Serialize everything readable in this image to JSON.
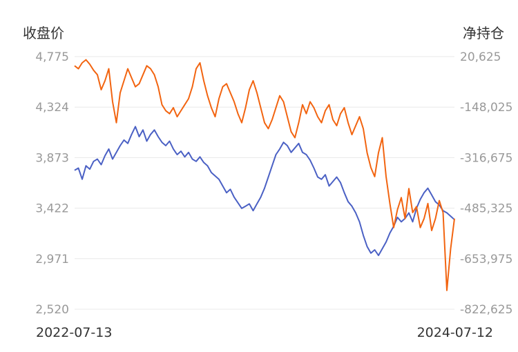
{
  "chart_data": {
    "type": "line",
    "left_axis_title": "收盘价",
    "right_axis_title": "净持仓",
    "left_ticks": [
      "4,775",
      "4,324",
      "3,873",
      "3,422",
      "2,971",
      "2,520"
    ],
    "right_ticks": [
      "20,625",
      "-148,025",
      "-316,675",
      "-485,325",
      "-653,975",
      "-822,625"
    ],
    "ylim_left": [
      2520,
      4775
    ],
    "ylim_right": [
      -822625,
      20625
    ],
    "grid": true,
    "x_start_label": "2022-07-13",
    "x_end_label": "2024-07-12",
    "series": [
      {
        "axis": "left",
        "color": "#4a60c4",
        "values": [
          3760,
          3780,
          3680,
          3800,
          3770,
          3840,
          3860,
          3810,
          3890,
          3950,
          3860,
          3920,
          3980,
          4030,
          4000,
          4080,
          4150,
          4060,
          4120,
          4020,
          4080,
          4120,
          4060,
          4010,
          3980,
          4020,
          3950,
          3900,
          3930,
          3880,
          3920,
          3860,
          3840,
          3880,
          3830,
          3800,
          3740,
          3710,
          3680,
          3620,
          3560,
          3590,
          3520,
          3470,
          3420,
          3440,
          3460,
          3400,
          3460,
          3520,
          3600,
          3700,
          3800,
          3900,
          3950,
          4010,
          3980,
          3920,
          3960,
          4000,
          3920,
          3900,
          3850,
          3780,
          3700,
          3680,
          3720,
          3620,
          3660,
          3700,
          3650,
          3560,
          3480,
          3440,
          3380,
          3300,
          3180,
          3080,
          3020,
          3050,
          3000,
          3060,
          3120,
          3200,
          3260,
          3340,
          3300,
          3330,
          3380,
          3300,
          3420,
          3500,
          3560,
          3600,
          3540,
          3480,
          3450,
          3400,
          3380,
          3350,
          3320
        ]
      },
      {
        "axis": "right",
        "color": "#f26410",
        "values": [
          -10000,
          -20000,
          0,
          10000,
          -5000,
          -25000,
          -40000,
          -90000,
          -60000,
          -20000,
          -130000,
          -200000,
          -100000,
          -60000,
          -20000,
          -50000,
          -80000,
          -70000,
          -40000,
          -10000,
          -20000,
          -40000,
          -80000,
          -140000,
          -160000,
          -170000,
          -150000,
          -180000,
          -160000,
          -140000,
          -120000,
          -80000,
          -20000,
          0,
          -60000,
          -110000,
          -150000,
          -180000,
          -120000,
          -80000,
          -70000,
          -100000,
          -130000,
          -170000,
          -200000,
          -150000,
          -90000,
          -60000,
          -100000,
          -150000,
          -200000,
          -220000,
          -190000,
          -150000,
          -110000,
          -130000,
          -180000,
          -230000,
          -250000,
          -200000,
          -140000,
          -170000,
          -130000,
          -150000,
          -180000,
          -200000,
          -160000,
          -140000,
          -190000,
          -210000,
          -170000,
          -150000,
          -200000,
          -240000,
          -210000,
          -180000,
          -220000,
          -300000,
          -350000,
          -380000,
          -300000,
          -250000,
          -380000,
          -470000,
          -550000,
          -490000,
          -450000,
          -520000,
          -420000,
          -500000,
          -480000,
          -550000,
          -520000,
          -470000,
          -560000,
          -520000,
          -460000,
          -500000,
          -760000,
          -620000,
          -520000
        ]
      }
    ]
  }
}
